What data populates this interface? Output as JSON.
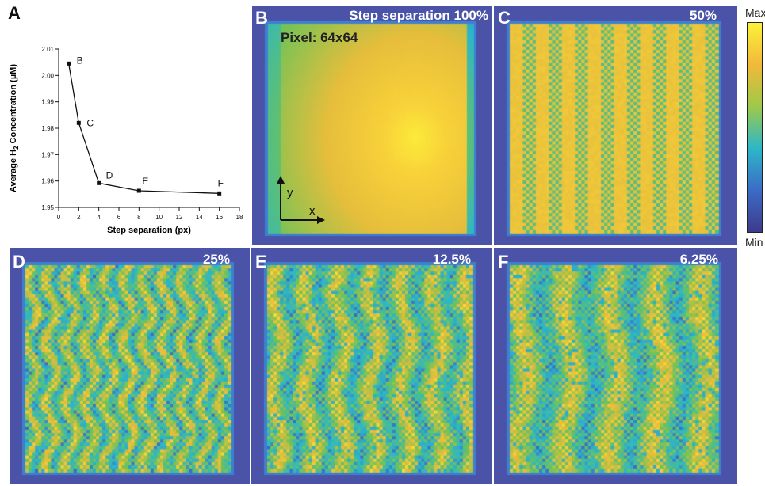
{
  "panel_a": {
    "letter": "A",
    "chart_data": {
      "type": "line",
      "x": [
        1,
        2,
        4,
        8,
        16
      ],
      "y": [
        2.0045,
        1.982,
        1.9592,
        1.9563,
        1.9553
      ],
      "point_labels": [
        "B",
        "C",
        "D",
        "E",
        "F"
      ],
      "xlabel": "Step separation (px)",
      "ylabel_prefix": "Average H",
      "ylabel_sub": "2",
      "ylabel_suffix": " Concentration (µM)",
      "xlim": [
        0,
        18
      ],
      "ylim": [
        1.95,
        2.01
      ],
      "xticks": [
        0,
        2,
        4,
        6,
        8,
        10,
        12,
        14,
        16,
        18
      ],
      "yticks": [
        1.95,
        1.96,
        1.97,
        1.98,
        1.99,
        2.0,
        2.01
      ],
      "ytick_labels": [
        "1.95",
        "1.96",
        "1.97",
        "1.98",
        "1.99",
        "2.00",
        "2.01"
      ]
    }
  },
  "heatmaps": [
    {
      "letter": "B",
      "label": "Step separation 100%",
      "pattern": "smooth"
    },
    {
      "letter": "C",
      "label": "50%",
      "pattern": "stripes"
    },
    {
      "letter": "D",
      "label": "25%",
      "pattern": "mesh-fine"
    },
    {
      "letter": "E",
      "label": "12.5%",
      "pattern": "mesh-medium"
    },
    {
      "letter": "F",
      "label": "6.25%",
      "pattern": "mesh-coarse"
    }
  ],
  "panel_b_annotations": {
    "pixel": "Pixel: 64x64",
    "axis_y": "y",
    "axis_x": "x"
  },
  "colorbar": {
    "max_label": "Max",
    "min_label": "Min",
    "colors": [
      "#fdf13a",
      "#f1b93a",
      "#9ec94a",
      "#2db7c8",
      "#3a6cc6",
      "#3e3a8c"
    ]
  }
}
